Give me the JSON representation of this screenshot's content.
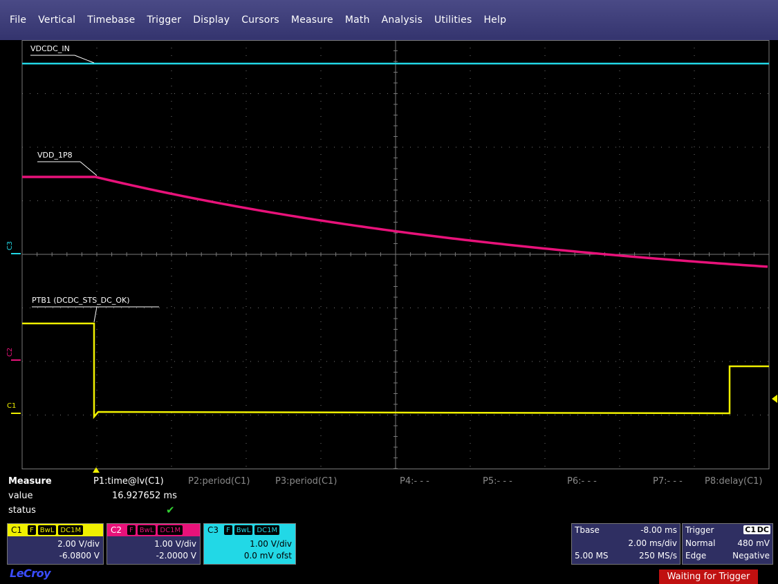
{
  "menu": [
    "File",
    "Vertical",
    "Timebase",
    "Trigger",
    "Display",
    "Cursors",
    "Measure",
    "Math",
    "Analysis",
    "Utilities",
    "Help"
  ],
  "traces": {
    "c3_label": "VDCDC_IN",
    "c2_label": "VDD_1P8",
    "c1_label": "PTB1 (DCDC_STS_DC_OK)"
  },
  "channel_markers": {
    "c3": "C3",
    "c2": "C2",
    "c1": "C1"
  },
  "colors": {
    "c1": "#f0f000",
    "c2": "#e8127a",
    "c3": "#22d8e6",
    "panel": "#2f2f62",
    "menu": "#3c3c78",
    "grid": "#7a7a7a"
  },
  "measure": {
    "title": "Measure",
    "row_value": "value",
    "row_status": "status",
    "params": [
      {
        "label": "P1:time@lv(C1)"
      },
      {
        "label": "P2:period(C1)"
      },
      {
        "label": "P3:period(C1)"
      },
      {
        "label": "P4:- - -"
      },
      {
        "label": "P5:- - -"
      },
      {
        "label": "P6:- - -"
      },
      {
        "label": "P7:- - -"
      },
      {
        "label": "P8:delay(C1)"
      }
    ],
    "p1_value": "16.927652 ms",
    "status_icon": "checkmark-icon"
  },
  "channels": {
    "c1": {
      "name": "C1",
      "tags": [
        "F",
        "BwL",
        "DC1M"
      ],
      "vdiv": "2.00 V/div",
      "offset": "-6.0800 V"
    },
    "c2": {
      "name": "C2",
      "tags": [
        "F",
        "BwL",
        "DC1M"
      ],
      "vdiv": "1.00 V/div",
      "offset": "-2.0000 V"
    },
    "c3": {
      "name": "C3",
      "tags": [
        "F",
        "BwL",
        "DC1M"
      ],
      "vdiv": "1.00 V/div",
      "offset": "0.0 mV ofst"
    }
  },
  "timebase": {
    "label": "Tbase",
    "delay": "-8.00 ms",
    "tdiv": "2.00 ms/div",
    "samples": "5.00 MS",
    "rate": "250 MS/s"
  },
  "trigger": {
    "label": "Trigger",
    "source": "C1",
    "coupling": "DC",
    "mode": "Normal",
    "level": "480 mV",
    "type": "Edge",
    "slope": "Negative"
  },
  "brand": "LeCroy",
  "status": "Waiting for Trigger"
}
